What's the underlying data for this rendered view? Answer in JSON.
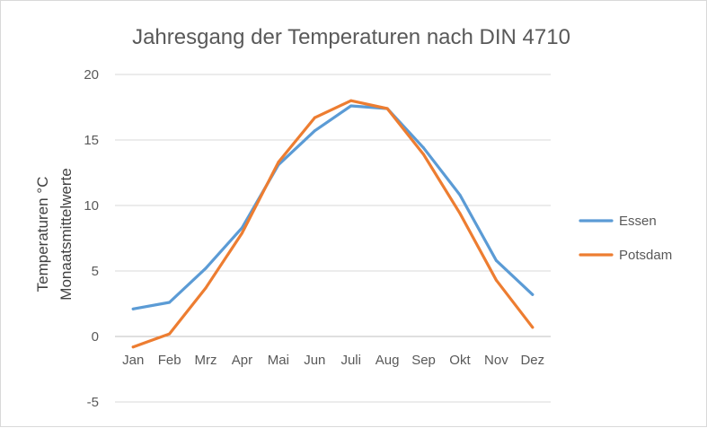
{
  "chart_data": {
    "type": "line",
    "title": "Jahresgang der Temperaturen nach DIN 4710",
    "ylabel_lines": [
      "Temperaturen  °C",
      "Monaatsmittelwerte"
    ],
    "categories": [
      "Jan",
      "Feb",
      "Mrz",
      "Apr",
      "Mai",
      "Jun",
      "Juli",
      "Aug",
      "Sep",
      "Okt",
      "Nov",
      "Dez"
    ],
    "yticks": [
      "20",
      "15",
      "10",
      "5",
      "0",
      "-5"
    ],
    "ylim": [
      -5,
      20
    ],
    "grid": true,
    "legend_position": "right",
    "series": [
      {
        "name": "Essen",
        "color": "#5b9bd5",
        "values": [
          2.1,
          2.6,
          5.2,
          8.3,
          13.1,
          15.7,
          17.6,
          17.4,
          14.4,
          10.8,
          5.8,
          3.2
        ]
      },
      {
        "name": "Potsdam",
        "color": "#ed7d31",
        "values": [
          -0.8,
          0.2,
          3.7,
          7.9,
          13.3,
          16.7,
          18.0,
          17.4,
          13.9,
          9.4,
          4.3,
          0.7
        ]
      }
    ]
  }
}
